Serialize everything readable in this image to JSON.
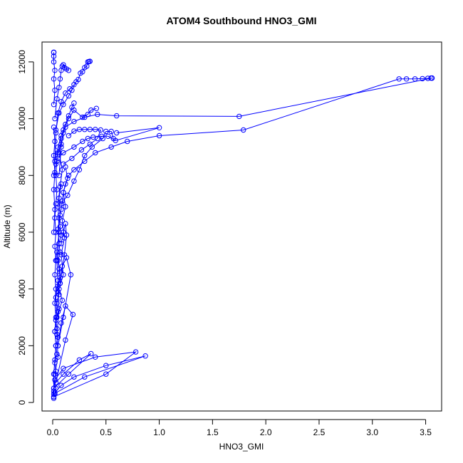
{
  "chart_data": {
    "type": "line",
    "title": "ATOM4 Southbound HNO3_GMI",
    "xlabel": "HNO3_GMI",
    "ylabel": "Altitude (m)",
    "xlim": [
      -0.1,
      3.65
    ],
    "ylim": [
      -300,
      12700
    ],
    "xticks": [
      0,
      0.5,
      1,
      1.5,
      2,
      2.5,
      3,
      3.5
    ],
    "xtick_labels": [
      "0.0",
      "0.5",
      "1.0",
      "1.5",
      "2.0",
      "2.5",
      "3.0",
      "3.5"
    ],
    "yticks": [
      0,
      2000,
      4000,
      6000,
      8000,
      10000,
      12000
    ],
    "ytick_labels": [
      "0",
      "2000",
      "4000",
      "6000",
      "8000",
      "10000",
      "12000"
    ],
    "grid": false,
    "line_color": "#0000ff",
    "series": [
      {
        "points": [
          [
            0.01,
            150
          ],
          [
            0.02,
            300
          ],
          [
            0.03,
            500
          ],
          [
            0.02,
            800
          ],
          [
            0.03,
            1100
          ],
          [
            0.02,
            1400
          ],
          [
            0.04,
            1700
          ],
          [
            0.03,
            2000
          ],
          [
            0.05,
            2300
          ],
          [
            0.04,
            2600
          ],
          [
            0.03,
            2900
          ],
          [
            0.05,
            3200
          ],
          [
            0.04,
            3500
          ],
          [
            0.06,
            3800
          ],
          [
            0.05,
            4100
          ],
          [
            0.07,
            4400
          ],
          [
            0.06,
            4700
          ],
          [
            0.05,
            5000
          ],
          [
            0.07,
            5300
          ],
          [
            0.06,
            5600
          ],
          [
            0.08,
            5900
          ],
          [
            0.07,
            6200
          ],
          [
            0.06,
            6500
          ],
          [
            0.08,
            6800
          ],
          [
            0.09,
            7100
          ],
          [
            0.1,
            7400
          ],
          [
            0.12,
            7700
          ],
          [
            0.15,
            8000
          ],
          [
            0.2,
            8200
          ],
          [
            0.3,
            8500
          ],
          [
            0.4,
            8800
          ],
          [
            0.55,
            9000
          ],
          [
            0.7,
            9200
          ],
          [
            1.0,
            9400
          ],
          [
            1.79,
            9600
          ],
          [
            3.25,
            11400
          ],
          [
            3.32,
            11400
          ],
          [
            3.4,
            11400
          ],
          [
            3.47,
            11410
          ],
          [
            3.52,
            11420
          ],
          [
            3.55,
            11430
          ],
          [
            3.56,
            11430
          ]
        ]
      },
      {
        "points": [
          [
            3.56,
            11430
          ],
          [
            1.75,
            10080
          ],
          [
            0.6,
            10100
          ],
          [
            0.42,
            10150
          ],
          [
            0.3,
            10050
          ],
          [
            0.2,
            9900
          ],
          [
            0.12,
            9700
          ],
          [
            0.08,
            9400
          ],
          [
            0.05,
            9000
          ],
          [
            0.04,
            8500
          ],
          [
            0.03,
            8000
          ],
          [
            0.04,
            7500
          ],
          [
            0.03,
            7000
          ],
          [
            0.02,
            6500
          ],
          [
            0.03,
            6000
          ],
          [
            0.02,
            5500
          ],
          [
            0.03,
            5000
          ],
          [
            0.02,
            4500
          ],
          [
            0.03,
            4000
          ],
          [
            0.02,
            3500
          ],
          [
            0.03,
            3000
          ],
          [
            0.02,
            2500
          ],
          [
            0.03,
            2000
          ],
          [
            0.02,
            1500
          ],
          [
            0.01,
            1000
          ],
          [
            0.01,
            500
          ],
          [
            0.01,
            200
          ]
        ]
      },
      {
        "points": [
          [
            0.01,
            200
          ],
          [
            0.5,
            1000
          ],
          [
            0.78,
            1780
          ],
          [
            0.4,
            1600
          ],
          [
            0.1,
            1200
          ],
          [
            0.02,
            800
          ],
          [
            0.01,
            400
          ]
        ]
      },
      {
        "points": [
          [
            0.01,
            300
          ],
          [
            0.3,
            900
          ],
          [
            0.87,
            1640
          ],
          [
            0.5,
            1300
          ],
          [
            0.2,
            900
          ],
          [
            0.08,
            600
          ],
          [
            0.02,
            350
          ]
        ]
      },
      {
        "points": [
          [
            0.01,
            500
          ],
          [
            0.15,
            1000
          ],
          [
            0.36,
            1720
          ],
          [
            0.25,
            1500
          ],
          [
            0.1,
            1000
          ],
          [
            0.03,
            700
          ]
        ]
      },
      {
        "points": [
          [
            0.03,
            700
          ],
          [
            0.12,
            2200
          ],
          [
            0.19,
            3100
          ],
          [
            0.12,
            3400
          ],
          [
            0.08,
            2800
          ],
          [
            0.05,
            2000
          ]
        ]
      },
      {
        "points": [
          [
            0.05,
            2000
          ],
          [
            0.1,
            3000
          ],
          [
            0.17,
            4500
          ],
          [
            0.13,
            5100
          ],
          [
            0.09,
            4800
          ],
          [
            0.07,
            4200
          ]
        ]
      },
      {
        "points": [
          [
            0.07,
            4200
          ],
          [
            0.11,
            5200
          ],
          [
            0.13,
            5900
          ],
          [
            0.12,
            6300
          ],
          [
            0.1,
            6000
          ],
          [
            0.08,
            5600
          ]
        ]
      },
      {
        "points": [
          [
            0.08,
            7000
          ],
          [
            0.14,
            7300
          ],
          [
            0.2,
            7800
          ],
          [
            0.25,
            8200
          ],
          [
            0.3,
            8700
          ],
          [
            0.37,
            9000
          ],
          [
            0.47,
            9300
          ],
          [
            0.5,
            9550
          ],
          [
            0.55,
            9550
          ],
          [
            0.57,
            9300
          ]
        ]
      },
      {
        "points": [
          [
            0.1,
            8400
          ],
          [
            0.18,
            8600
          ],
          [
            0.27,
            8900
          ],
          [
            0.35,
            9100
          ],
          [
            0.42,
            9300
          ],
          [
            0.45,
            9600
          ],
          [
            0.4,
            9620
          ],
          [
            0.35,
            9620
          ],
          [
            0.3,
            9620
          ],
          [
            0.25,
            9620
          ],
          [
            0.2,
            9560
          ],
          [
            0.15,
            9400
          ]
        ]
      },
      {
        "points": [
          [
            0.05,
            8600
          ],
          [
            0.1,
            8800
          ],
          [
            0.2,
            9000
          ],
          [
            0.28,
            9200
          ],
          [
            0.33,
            9300
          ],
          [
            0.38,
            9350
          ],
          [
            0.46,
            9380
          ],
          [
            0.52,
            9380
          ],
          [
            0.59,
            9230
          ],
          [
            1.0,
            9680
          ],
          [
            0.6,
            9500
          ]
        ]
      },
      {
        "points": [
          [
            0.06,
            8000
          ],
          [
            0.08,
            9000
          ],
          [
            0.1,
            9600
          ],
          [
            0.15,
            10000
          ],
          [
            0.2,
            10300
          ],
          [
            0.28,
            10050
          ],
          [
            0.33,
            10150
          ],
          [
            0.36,
            10300
          ],
          [
            0.41,
            10360
          ]
        ]
      },
      {
        "points": [
          [
            0.03,
            9600
          ],
          [
            0.06,
            10200
          ],
          [
            0.1,
            10500
          ],
          [
            0.15,
            10800
          ],
          [
            0.18,
            11000
          ],
          [
            0.22,
            11300
          ],
          [
            0.24,
            11380
          ],
          [
            0.26,
            11600
          ],
          [
            0.28,
            11650
          ],
          [
            0.3,
            11800
          ],
          [
            0.32,
            11850
          ],
          [
            0.33,
            12000
          ],
          [
            0.34,
            12010
          ],
          [
            0.35,
            12020
          ]
        ]
      },
      {
        "points": [
          [
            0.02,
            10000
          ],
          [
            0.04,
            10700
          ],
          [
            0.06,
            11100
          ],
          [
            0.07,
            11400
          ],
          [
            0.08,
            11700
          ],
          [
            0.09,
            11850
          ],
          [
            0.1,
            11900
          ],
          [
            0.11,
            11800
          ],
          [
            0.13,
            11750
          ],
          [
            0.15,
            11700
          ]
        ]
      },
      {
        "points": [
          [
            0.01,
            10500
          ],
          [
            0.02,
            11000
          ],
          [
            0.01,
            11400
          ],
          [
            0.02,
            11700
          ],
          [
            0.01,
            12000
          ],
          [
            0.01,
            12200
          ],
          [
            0.01,
            12330
          ],
          [
            0.01,
            12340
          ]
        ]
      },
      {
        "points": [
          [
            0.02,
            8500
          ],
          [
            0.03,
            9500
          ],
          [
            0.05,
            10200
          ],
          [
            0.08,
            10600
          ],
          [
            0.12,
            10900
          ],
          [
            0.16,
            11050
          ],
          [
            0.2,
            11200
          ]
        ]
      },
      {
        "points": [
          [
            0.03,
            5000
          ],
          [
            0.06,
            6000
          ],
          [
            0.05,
            7000
          ],
          [
            0.07,
            7600
          ],
          [
            0.09,
            8200
          ],
          [
            0.06,
            8800
          ],
          [
            0.08,
            9300
          ]
        ]
      },
      {
        "points": [
          [
            0.02,
            1000
          ],
          [
            0.05,
            1600
          ],
          [
            0.04,
            2400
          ],
          [
            0.06,
            3300
          ],
          [
            0.05,
            3900
          ],
          [
            0.07,
            4600
          ],
          [
            0.04,
            5300
          ]
        ]
      },
      {
        "points": [
          [
            0.02,
            2500
          ],
          [
            0.04,
            3000
          ],
          [
            0.03,
            3700
          ],
          [
            0.05,
            4300
          ],
          [
            0.04,
            5000
          ],
          [
            0.06,
            5600
          ],
          [
            0.05,
            6100
          ],
          [
            0.07,
            6600
          ],
          [
            0.06,
            7200
          ],
          [
            0.08,
            7700
          ]
        ]
      },
      {
        "points": [
          [
            0.01,
            6000
          ],
          [
            0.02,
            6800
          ],
          [
            0.01,
            7500
          ],
          [
            0.02,
            8100
          ],
          [
            0.01,
            8700
          ],
          [
            0.02,
            9200
          ],
          [
            0.01,
            9700
          ]
        ]
      },
      {
        "points": [
          [
            0.04,
            3000
          ],
          [
            0.09,
            3600
          ],
          [
            0.06,
            4000
          ],
          [
            0.1,
            4500
          ],
          [
            0.08,
            5200
          ],
          [
            0.11,
            5800
          ],
          [
            0.09,
            6400
          ],
          [
            0.12,
            6900
          ],
          [
            0.1,
            7400
          ],
          [
            0.14,
            7900
          ],
          [
            0.12,
            8300
          ]
        ]
      },
      {
        "points": [
          [
            0.01,
            8000
          ],
          [
            0.03,
            8400
          ],
          [
            0.05,
            8800
          ],
          [
            0.08,
            9100
          ],
          [
            0.1,
            9500
          ],
          [
            0.12,
            9800
          ],
          [
            0.15,
            10100
          ],
          [
            0.18,
            10400
          ],
          [
            0.2,
            10550
          ]
        ]
      }
    ]
  }
}
